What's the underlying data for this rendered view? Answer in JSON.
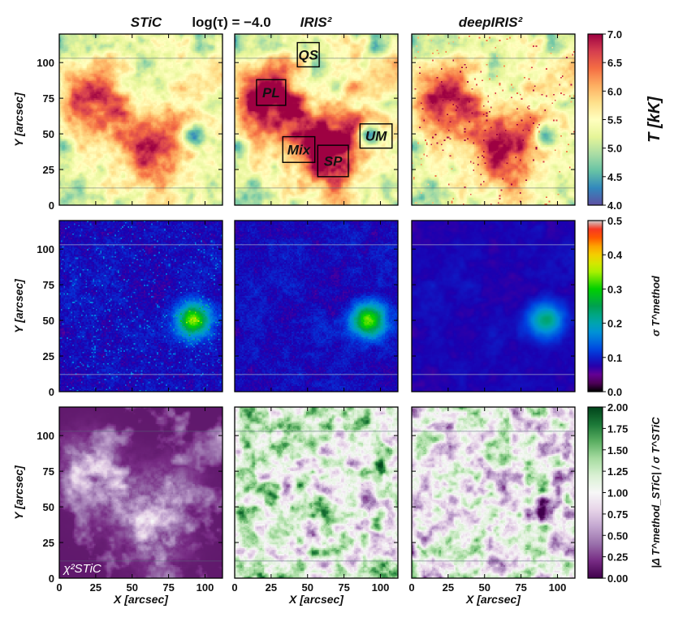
{
  "chart_data": {
    "type": "heatmap",
    "title": {
      "method_1": "STiC",
      "depth": "log(τ) = −4.0",
      "method_2": "IRIS²",
      "method_3": "deepIRIS²"
    },
    "columns": [
      "STiC",
      "IRIS²",
      "deepIRIS²"
    ],
    "xlabel": "X [arcsec]",
    "ylabel": "Y [arcsec]",
    "xlim": [
      0,
      112
    ],
    "ylim": [
      0,
      120
    ],
    "xticks": [
      0,
      25,
      50,
      75,
      100
    ],
    "yticks": [
      0,
      25,
      50,
      75,
      100
    ],
    "rows": [
      {
        "quantity": "temperature",
        "colorbar_label": "T [kK]",
        "colormap": "Spectral_r",
        "range": [
          4.0,
          7.0
        ],
        "colorbar_ticks": [
          "4.0",
          "4.5",
          "5.0",
          "5.5",
          "6.0",
          "6.5",
          "7.0"
        ]
      },
      {
        "quantity": "uncertainty",
        "colorbar_label": "σ T^method",
        "colormap": "nipy_spectral",
        "range": [
          0.0,
          0.5
        ],
        "colorbar_ticks": [
          "0.0",
          "0.1",
          "0.2",
          "0.3",
          "0.4",
          "0.5"
        ]
      },
      {
        "quantity": "normalized_difference",
        "colorbar_label": "|Δ T^method_STiC| / σ T^STiC",
        "colormap": "PRGn",
        "range": [
          0.0,
          2.0
        ],
        "colorbar_ticks": [
          "0.00",
          "0.25",
          "0.50",
          "0.75",
          "1.00",
          "1.25",
          "1.50",
          "1.75",
          "2.00"
        ],
        "first_panel_label": "χ²STiC"
      }
    ],
    "regions": [
      {
        "label": "QS",
        "x": [
          43,
          58
        ],
        "y": [
          97,
          114
        ]
      },
      {
        "label": "PL",
        "x": [
          15,
          35
        ],
        "y": [
          70,
          88
        ]
      },
      {
        "label": "UM",
        "x": [
          86,
          108
        ],
        "y": [
          40,
          57
        ]
      },
      {
        "label": "Mix",
        "x": [
          33,
          55
        ],
        "y": [
          30,
          48
        ]
      },
      {
        "label": "SP",
        "x": [
          57,
          78
        ],
        "y": [
          20,
          42
        ]
      }
    ],
    "features": {
      "sunspot_center": [
        92,
        50
      ],
      "plage_areas": [
        [
          20,
          80
        ],
        [
          75,
          60
        ],
        [
          40,
          55
        ],
        [
          65,
          28
        ]
      ]
    }
  }
}
